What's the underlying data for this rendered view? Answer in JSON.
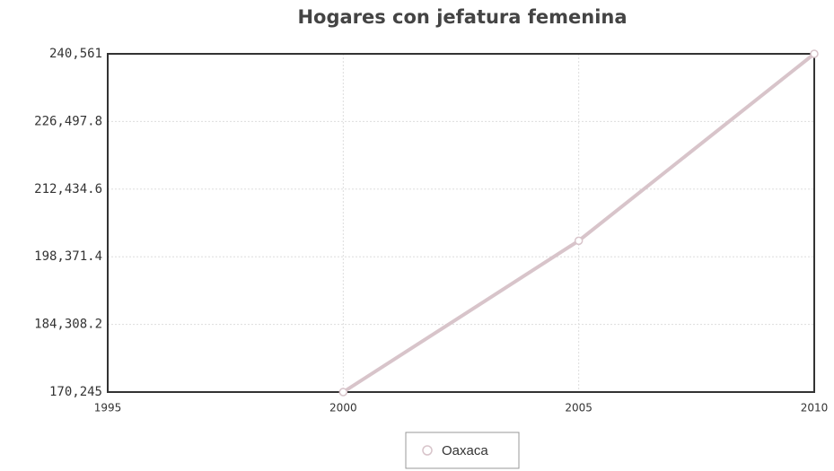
{
  "chart_data": {
    "type": "line",
    "title": "Hogares con jefatura femenina",
    "x": [
      2000,
      2005,
      2010
    ],
    "series": [
      {
        "name": "Oaxaca",
        "color": "#d8c4ca",
        "values": [
          170245,
          201700,
          240561
        ]
      }
    ],
    "xlim": [
      1995,
      2010
    ],
    "xticks": [
      1995,
      2000,
      2005,
      2010
    ],
    "ylim": [
      170245,
      240561
    ],
    "yticks": [
      {
        "value": 170245,
        "label": "170,245"
      },
      {
        "value": 184308.2,
        "label": "184,308.2"
      },
      {
        "value": 198371.4,
        "label": "198,371.4"
      },
      {
        "value": 212434.6,
        "label": "212,434.6"
      },
      {
        "value": 226497.8,
        "label": "226,497.8"
      },
      {
        "value": 240561,
        "label": "240,561"
      }
    ],
    "grid": true,
    "legend": "bottom"
  }
}
